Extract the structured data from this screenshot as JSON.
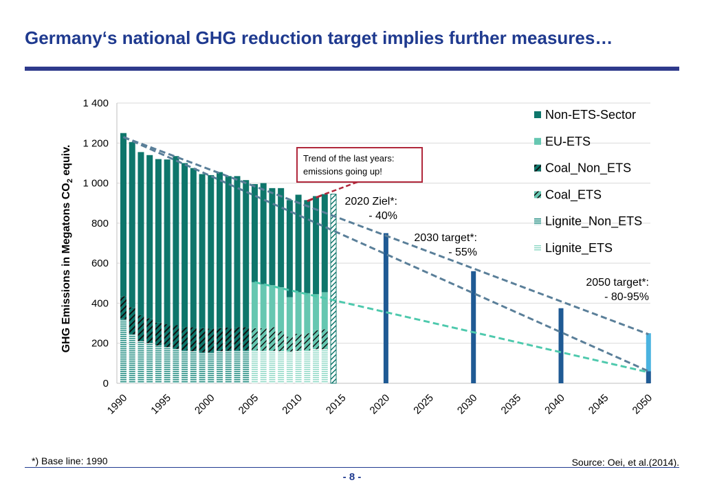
{
  "header": {
    "title": "Germany‘s national GHG reduction target implies further measures…"
  },
  "footer": {
    "footnote": "*) Base line: 1990",
    "source": "Source: Oei, et al.(2014).",
    "page": "- 8 -"
  },
  "colors": {
    "title": "#1f3a8f",
    "non_ets": "#0e766b",
    "eu_ets": "#66c7b1",
    "coal": "#1a1a1a",
    "lignite_non_ets": "#2a8f86",
    "lignite_ets": "#8fd8c6",
    "target_bar": "#1f5a94",
    "target_2050_eu": "#4ab3e0",
    "trend_gray": "#5a7f99",
    "trend_teal": "#4ec9ad",
    "callout": "#b0263a"
  },
  "chart_data": {
    "type": "bar",
    "title": "",
    "xlabel": "",
    "ylabel": "GHG Emissions in Megatons CO2 equiv.",
    "ylim": [
      0,
      1400
    ],
    "yticks": [
      0,
      200,
      400,
      600,
      800,
      1000,
      1200,
      1400
    ],
    "ytick_labels": [
      "0",
      "200",
      "400",
      "600",
      "800",
      "1 000",
      "1 200",
      "1 400"
    ],
    "xlim": [
      1990,
      2050
    ],
    "xticks": [
      "1990",
      "1995",
      "2000",
      "2005",
      "2010",
      "2015",
      "2020",
      "2025",
      "2030",
      "2035",
      "2040",
      "2045",
      "2050"
    ],
    "legend": [
      "Non-ETS-Sector",
      "EU-ETS",
      "Coal_Non_ETS",
      "Coal_ETS",
      "Lignite_Non_ETS",
      "Lignite_ETS"
    ],
    "legend_position": "top-right",
    "historical": {
      "years": [
        1990,
        1991,
        1992,
        1993,
        1994,
        1995,
        1996,
        1997,
        1998,
        1999,
        2000,
        2001,
        2002,
        2003,
        2004,
        2005,
        2006,
        2007,
        2008,
        2009,
        2010,
        2011,
        2012,
        2013
      ],
      "totals": [
        1250,
        1205,
        1155,
        1140,
        1120,
        1118,
        1135,
        1100,
        1075,
        1045,
        1040,
        1055,
        1035,
        1035,
        1015,
        995,
        1000,
        975,
        975,
        915,
        942,
        915,
        935,
        945
      ],
      "lignite": [
        320,
        245,
        210,
        200,
        188,
        180,
        172,
        165,
        160,
        155,
        155,
        160,
        163,
        165,
        165,
        165,
        163,
        162,
        160,
        158,
        162,
        165,
        170,
        170
      ],
      "coal": [
        115,
        135,
        130,
        125,
        115,
        115,
        118,
        115,
        120,
        120,
        118,
        115,
        115,
        115,
        115,
        110,
        112,
        118,
        100,
        75,
        85,
        85,
        95,
        100
      ],
      "ets_total": [
        null,
        null,
        null,
        null,
        null,
        null,
        null,
        null,
        null,
        null,
        null,
        null,
        null,
        null,
        null,
        505,
        495,
        490,
        480,
        430,
        455,
        450,
        445,
        455
      ]
    },
    "targets": [
      {
        "year": 2020,
        "value": 750,
        "label": "2020 Ziel*:",
        "sublabel": "- 40%"
      },
      {
        "year": 2030,
        "value": 560,
        "label": "2030 target*:",
        "sublabel": "- 55%"
      },
      {
        "year": 2040,
        "value": 375,
        "label": "",
        "sublabel": ""
      },
      {
        "year": 2050,
        "value": 250,
        "non_ets_part": 60,
        "label": "2050 target*:",
        "sublabel": "- 80-95%"
      }
    ],
    "trend_lines": [
      {
        "from": [
          1990,
          1230
        ],
        "to": [
          2050,
          245
        ],
        "color": "gray"
      },
      {
        "from": [
          1990,
          1230
        ],
        "to": [
          2050,
          60
        ],
        "color": "gray"
      },
      {
        "from": [
          2005,
          505
        ],
        "to": [
          2050,
          55
        ],
        "color": "teal"
      },
      {
        "from": [
          2011,
          910
        ],
        "to": [
          2013,
          945
        ],
        "color": "red"
      }
    ],
    "callout": {
      "line1": "Trend of the last years:",
      "line2": "emissions going up!"
    }
  }
}
